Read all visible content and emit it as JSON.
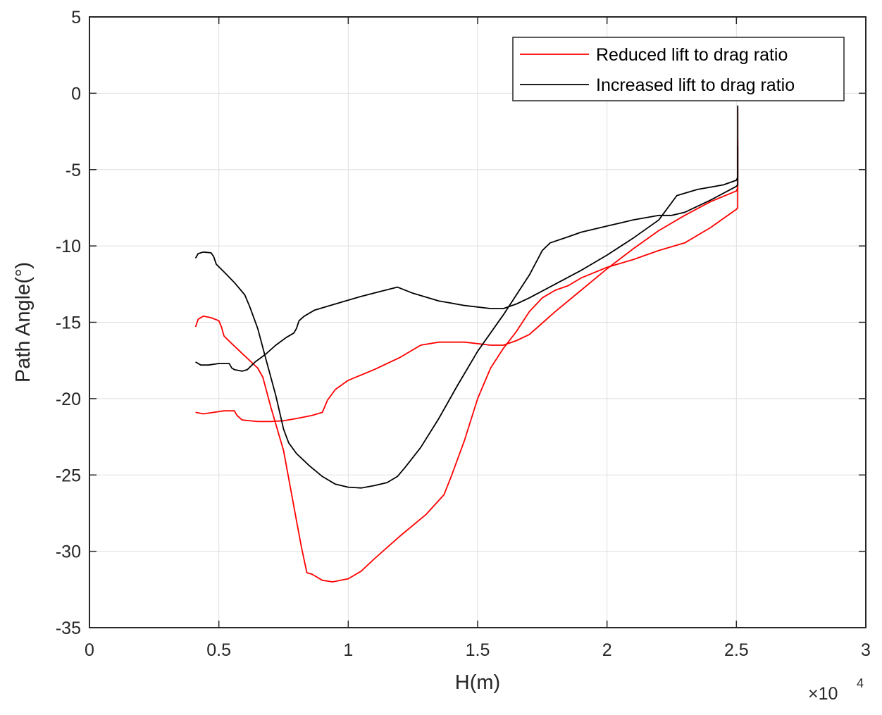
{
  "chart_data": {
    "type": "line",
    "title": "",
    "xlabel": "H(m)",
    "ylabel": "Path Angle(°)",
    "x_exponent_label": "×10",
    "x_exponent_power": "4",
    "xlim": [
      0,
      3
    ],
    "ylim": [
      -35,
      5
    ],
    "x_ticks": [
      0,
      0.5,
      1,
      1.5,
      2,
      2.5,
      3
    ],
    "x_tick_labels": [
      "0",
      "0.5",
      "1",
      "1.5",
      "2",
      "2.5",
      "3"
    ],
    "y_ticks": [
      5,
      0,
      -5,
      -10,
      -15,
      -20,
      -25,
      -30,
      -35
    ],
    "y_tick_labels": [
      "5",
      "0",
      "-5",
      "-10",
      "-15",
      "-20",
      "-25",
      "-30",
      "-35"
    ],
    "grid": true,
    "legend_position": "top-right",
    "series": [
      {
        "name": "Reduced lift to drag ratio",
        "color": "#ff0000",
        "segments": [
          [
            [
              0.41,
              -15.3
            ],
            [
              0.42,
              -14.8
            ],
            [
              0.44,
              -14.6
            ],
            [
              0.47,
              -14.7
            ],
            [
              0.5,
              -14.9
            ],
            [
              0.51,
              -15.3
            ],
            [
              0.52,
              -15.9
            ],
            [
              0.55,
              -16.4
            ],
            [
              0.6,
              -17.2
            ],
            [
              0.65,
              -18.0
            ],
            [
              0.67,
              -18.6
            ],
            [
              0.7,
              -20.5
            ],
            [
              0.75,
              -23.4
            ],
            [
              0.8,
              -28.0
            ],
            [
              0.82,
              -29.8
            ],
            [
              0.84,
              -31.4
            ],
            [
              0.86,
              -31.5
            ],
            [
              0.9,
              -31.9
            ],
            [
              0.94,
              -32.0
            ],
            [
              1.0,
              -31.8
            ],
            [
              1.05,
              -31.3
            ],
            [
              1.1,
              -30.5
            ],
            [
              1.2,
              -29.0
            ],
            [
              1.3,
              -27.6
            ],
            [
              1.37,
              -26.3
            ],
            [
              1.4,
              -25.0
            ],
            [
              1.45,
              -22.7
            ],
            [
              1.5,
              -20.0
            ],
            [
              1.55,
              -18.0
            ],
            [
              1.6,
              -16.7
            ],
            [
              1.65,
              -15.6
            ],
            [
              1.7,
              -14.3
            ],
            [
              1.75,
              -13.4
            ],
            [
              1.8,
              -12.9
            ],
            [
              1.85,
              -12.6
            ],
            [
              1.9,
              -12.1
            ],
            [
              2.0,
              -11.4
            ],
            [
              2.1,
              -10.9
            ],
            [
              2.2,
              -10.3
            ],
            [
              2.3,
              -9.8
            ],
            [
              2.4,
              -8.8
            ],
            [
              2.5,
              -7.6
            ],
            [
              2.505,
              -7.5
            ],
            [
              2.505,
              -6.5
            ],
            [
              2.505,
              -1.0
            ]
          ],
          [
            [
              0.41,
              -20.9
            ],
            [
              0.44,
              -21.0
            ],
            [
              0.48,
              -20.9
            ],
            [
              0.52,
              -20.8
            ],
            [
              0.56,
              -20.8
            ],
            [
              0.57,
              -21.1
            ],
            [
              0.59,
              -21.4
            ],
            [
              0.65,
              -21.5
            ],
            [
              0.7,
              -21.5
            ],
            [
              0.75,
              -21.45
            ],
            [
              0.8,
              -21.3
            ],
            [
              0.86,
              -21.1
            ],
            [
              0.9,
              -20.9
            ],
            [
              0.92,
              -20.1
            ],
            [
              0.95,
              -19.4
            ],
            [
              1.0,
              -18.8
            ],
            [
              1.1,
              -18.1
            ],
            [
              1.2,
              -17.3
            ],
            [
              1.28,
              -16.5
            ],
            [
              1.35,
              -16.3
            ],
            [
              1.45,
              -16.3
            ],
            [
              1.55,
              -16.5
            ],
            [
              1.6,
              -16.5
            ],
            [
              1.65,
              -16.2
            ],
            [
              1.7,
              -15.8
            ],
            [
              1.8,
              -14.3
            ],
            [
              1.9,
              -12.9
            ],
            [
              2.0,
              -11.5
            ],
            [
              2.1,
              -10.2
            ],
            [
              2.2,
              -9.0
            ],
            [
              2.3,
              -8.0
            ],
            [
              2.4,
              -7.1
            ],
            [
              2.5,
              -6.4
            ],
            [
              2.505,
              -6.2
            ],
            [
              2.505,
              -3.0
            ]
          ]
        ]
      },
      {
        "name": "Increased lift to drag ratio",
        "color": "#000000",
        "segments": [
          [
            [
              0.41,
              -10.8
            ],
            [
              0.42,
              -10.5
            ],
            [
              0.44,
              -10.4
            ],
            [
              0.47,
              -10.45
            ],
            [
              0.48,
              -10.7
            ],
            [
              0.49,
              -11.2
            ],
            [
              0.52,
              -11.7
            ],
            [
              0.56,
              -12.4
            ],
            [
              0.6,
              -13.2
            ],
            [
              0.62,
              -14.0
            ],
            [
              0.65,
              -15.4
            ],
            [
              0.68,
              -17.3
            ],
            [
              0.72,
              -19.8
            ],
            [
              0.75,
              -22.0
            ],
            [
              0.77,
              -22.9
            ],
            [
              0.8,
              -23.6
            ],
            [
              0.85,
              -24.4
            ],
            [
              0.9,
              -25.1
            ],
            [
              0.95,
              -25.6
            ],
            [
              1.0,
              -25.8
            ],
            [
              1.05,
              -25.85
            ],
            [
              1.1,
              -25.7
            ],
            [
              1.15,
              -25.5
            ],
            [
              1.19,
              -25.1
            ],
            [
              1.22,
              -24.5
            ],
            [
              1.28,
              -23.2
            ],
            [
              1.35,
              -21.3
            ],
            [
              1.42,
              -19.2
            ],
            [
              1.5,
              -16.9
            ],
            [
              1.6,
              -14.5
            ],
            [
              1.65,
              -13.2
            ],
            [
              1.7,
              -11.9
            ],
            [
              1.75,
              -10.3
            ],
            [
              1.78,
              -9.8
            ],
            [
              1.85,
              -9.4
            ],
            [
              1.9,
              -9.1
            ],
            [
              2.0,
              -8.7
            ],
            [
              2.1,
              -8.3
            ],
            [
              2.2,
              -8.0
            ],
            [
              2.25,
              -8.0
            ],
            [
              2.3,
              -7.8
            ],
            [
              2.4,
              -7.0
            ],
            [
              2.5,
              -6.1
            ],
            [
              2.505,
              -6.0
            ],
            [
              2.505,
              -0.8
            ]
          ],
          [
            [
              0.41,
              -17.6
            ],
            [
              0.43,
              -17.8
            ],
            [
              0.46,
              -17.8
            ],
            [
              0.5,
              -17.7
            ],
            [
              0.54,
              -17.7
            ],
            [
              0.55,
              -18.0
            ],
            [
              0.56,
              -18.1
            ],
            [
              0.59,
              -18.2
            ],
            [
              0.61,
              -18.1
            ],
            [
              0.64,
              -17.6
            ],
            [
              0.68,
              -17.1
            ],
            [
              0.72,
              -16.5
            ],
            [
              0.76,
              -16.0
            ],
            [
              0.79,
              -15.7
            ],
            [
              0.8,
              -15.4
            ],
            [
              0.81,
              -14.9
            ],
            [
              0.83,
              -14.6
            ],
            [
              0.87,
              -14.2
            ],
            [
              0.95,
              -13.8
            ],
            [
              1.05,
              -13.3
            ],
            [
              1.12,
              -13.0
            ],
            [
              1.19,
              -12.7
            ],
            [
              1.25,
              -13.1
            ],
            [
              1.35,
              -13.6
            ],
            [
              1.45,
              -13.9
            ],
            [
              1.55,
              -14.1
            ],
            [
              1.6,
              -14.1
            ],
            [
              1.65,
              -13.8
            ],
            [
              1.7,
              -13.4
            ],
            [
              1.8,
              -12.5
            ],
            [
              1.9,
              -11.6
            ],
            [
              2.0,
              -10.6
            ],
            [
              2.1,
              -9.5
            ],
            [
              2.2,
              -8.3
            ],
            [
              2.27,
              -6.7
            ],
            [
              2.35,
              -6.3
            ],
            [
              2.45,
              -6.0
            ],
            [
              2.5,
              -5.7
            ],
            [
              2.505,
              -5.5
            ],
            [
              2.505,
              -3.5
            ]
          ]
        ]
      }
    ]
  }
}
